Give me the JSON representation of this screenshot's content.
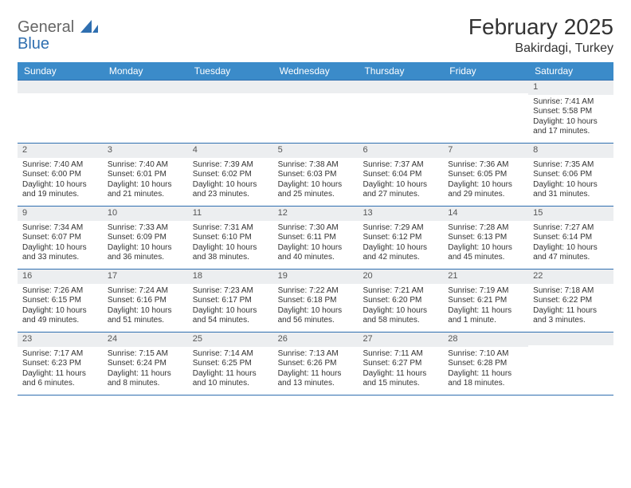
{
  "brand": {
    "line1": "General",
    "line2": "Blue"
  },
  "title": "February 2025",
  "location": "Bakirdagi, Turkey",
  "colors": {
    "header_bg": "#3b8bc9",
    "border": "#2f6fb0",
    "daynum_bg": "#eceef0",
    "text": "#333333"
  },
  "weekdays": [
    "Sunday",
    "Monday",
    "Tuesday",
    "Wednesday",
    "Thursday",
    "Friday",
    "Saturday"
  ],
  "weeks": [
    [
      {
        "n": "",
        "sr": "",
        "ss": "",
        "dl": ""
      },
      {
        "n": "",
        "sr": "",
        "ss": "",
        "dl": ""
      },
      {
        "n": "",
        "sr": "",
        "ss": "",
        "dl": ""
      },
      {
        "n": "",
        "sr": "",
        "ss": "",
        "dl": ""
      },
      {
        "n": "",
        "sr": "",
        "ss": "",
        "dl": ""
      },
      {
        "n": "",
        "sr": "",
        "ss": "",
        "dl": ""
      },
      {
        "n": "1",
        "sr": "Sunrise: 7:41 AM",
        "ss": "Sunset: 5:58 PM",
        "dl": "Daylight: 10 hours and 17 minutes."
      }
    ],
    [
      {
        "n": "2",
        "sr": "Sunrise: 7:40 AM",
        "ss": "Sunset: 6:00 PM",
        "dl": "Daylight: 10 hours and 19 minutes."
      },
      {
        "n": "3",
        "sr": "Sunrise: 7:40 AM",
        "ss": "Sunset: 6:01 PM",
        "dl": "Daylight: 10 hours and 21 minutes."
      },
      {
        "n": "4",
        "sr": "Sunrise: 7:39 AM",
        "ss": "Sunset: 6:02 PM",
        "dl": "Daylight: 10 hours and 23 minutes."
      },
      {
        "n": "5",
        "sr": "Sunrise: 7:38 AM",
        "ss": "Sunset: 6:03 PM",
        "dl": "Daylight: 10 hours and 25 minutes."
      },
      {
        "n": "6",
        "sr": "Sunrise: 7:37 AM",
        "ss": "Sunset: 6:04 PM",
        "dl": "Daylight: 10 hours and 27 minutes."
      },
      {
        "n": "7",
        "sr": "Sunrise: 7:36 AM",
        "ss": "Sunset: 6:05 PM",
        "dl": "Daylight: 10 hours and 29 minutes."
      },
      {
        "n": "8",
        "sr": "Sunrise: 7:35 AM",
        "ss": "Sunset: 6:06 PM",
        "dl": "Daylight: 10 hours and 31 minutes."
      }
    ],
    [
      {
        "n": "9",
        "sr": "Sunrise: 7:34 AM",
        "ss": "Sunset: 6:07 PM",
        "dl": "Daylight: 10 hours and 33 minutes."
      },
      {
        "n": "10",
        "sr": "Sunrise: 7:33 AM",
        "ss": "Sunset: 6:09 PM",
        "dl": "Daylight: 10 hours and 36 minutes."
      },
      {
        "n": "11",
        "sr": "Sunrise: 7:31 AM",
        "ss": "Sunset: 6:10 PM",
        "dl": "Daylight: 10 hours and 38 minutes."
      },
      {
        "n": "12",
        "sr": "Sunrise: 7:30 AM",
        "ss": "Sunset: 6:11 PM",
        "dl": "Daylight: 10 hours and 40 minutes."
      },
      {
        "n": "13",
        "sr": "Sunrise: 7:29 AM",
        "ss": "Sunset: 6:12 PM",
        "dl": "Daylight: 10 hours and 42 minutes."
      },
      {
        "n": "14",
        "sr": "Sunrise: 7:28 AM",
        "ss": "Sunset: 6:13 PM",
        "dl": "Daylight: 10 hours and 45 minutes."
      },
      {
        "n": "15",
        "sr": "Sunrise: 7:27 AM",
        "ss": "Sunset: 6:14 PM",
        "dl": "Daylight: 10 hours and 47 minutes."
      }
    ],
    [
      {
        "n": "16",
        "sr": "Sunrise: 7:26 AM",
        "ss": "Sunset: 6:15 PM",
        "dl": "Daylight: 10 hours and 49 minutes."
      },
      {
        "n": "17",
        "sr": "Sunrise: 7:24 AM",
        "ss": "Sunset: 6:16 PM",
        "dl": "Daylight: 10 hours and 51 minutes."
      },
      {
        "n": "18",
        "sr": "Sunrise: 7:23 AM",
        "ss": "Sunset: 6:17 PM",
        "dl": "Daylight: 10 hours and 54 minutes."
      },
      {
        "n": "19",
        "sr": "Sunrise: 7:22 AM",
        "ss": "Sunset: 6:18 PM",
        "dl": "Daylight: 10 hours and 56 minutes."
      },
      {
        "n": "20",
        "sr": "Sunrise: 7:21 AM",
        "ss": "Sunset: 6:20 PM",
        "dl": "Daylight: 10 hours and 58 minutes."
      },
      {
        "n": "21",
        "sr": "Sunrise: 7:19 AM",
        "ss": "Sunset: 6:21 PM",
        "dl": "Daylight: 11 hours and 1 minute."
      },
      {
        "n": "22",
        "sr": "Sunrise: 7:18 AM",
        "ss": "Sunset: 6:22 PM",
        "dl": "Daylight: 11 hours and 3 minutes."
      }
    ],
    [
      {
        "n": "23",
        "sr": "Sunrise: 7:17 AM",
        "ss": "Sunset: 6:23 PM",
        "dl": "Daylight: 11 hours and 6 minutes."
      },
      {
        "n": "24",
        "sr": "Sunrise: 7:15 AM",
        "ss": "Sunset: 6:24 PM",
        "dl": "Daylight: 11 hours and 8 minutes."
      },
      {
        "n": "25",
        "sr": "Sunrise: 7:14 AM",
        "ss": "Sunset: 6:25 PM",
        "dl": "Daylight: 11 hours and 10 minutes."
      },
      {
        "n": "26",
        "sr": "Sunrise: 7:13 AM",
        "ss": "Sunset: 6:26 PM",
        "dl": "Daylight: 11 hours and 13 minutes."
      },
      {
        "n": "27",
        "sr": "Sunrise: 7:11 AM",
        "ss": "Sunset: 6:27 PM",
        "dl": "Daylight: 11 hours and 15 minutes."
      },
      {
        "n": "28",
        "sr": "Sunrise: 7:10 AM",
        "ss": "Sunset: 6:28 PM",
        "dl": "Daylight: 11 hours and 18 minutes."
      },
      {
        "n": "",
        "sr": "",
        "ss": "",
        "dl": ""
      }
    ]
  ]
}
